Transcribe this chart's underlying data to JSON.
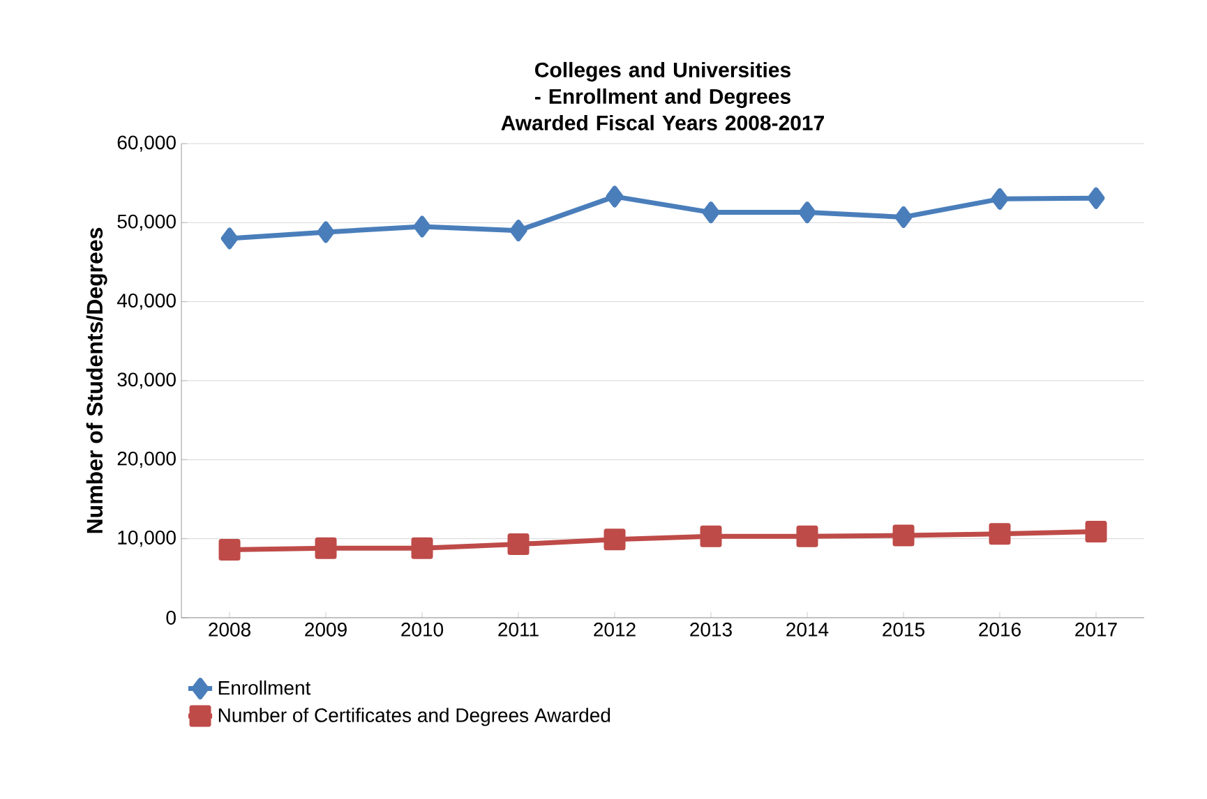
{
  "chart_data": {
    "type": "line",
    "title": "Colleges and Universities - Enrollment and Degrees Awarded Fiscal Years 2008-2017",
    "ylabel": "Number of Students/Degrees",
    "categories": [
      "2008",
      "2009",
      "2010",
      "2011",
      "2012",
      "2013",
      "2014",
      "2015",
      "2016",
      "2017"
    ],
    "series": [
      {
        "name": "Enrollment",
        "color": "#4a7ebb",
        "marker": "diamond",
        "values": [
          48000,
          48800,
          49500,
          49000,
          53300,
          51300,
          51300,
          50700,
          53000,
          53100
        ]
      },
      {
        "name": "Number of Certificates and Degrees Awarded",
        "color": "#be4b48",
        "marker": "square",
        "values": [
          8600,
          8800,
          8800,
          9300,
          9900,
          10300,
          10300,
          10400,
          10600,
          10900
        ]
      }
    ],
    "ylim": [
      0,
      60000
    ],
    "yticks": [
      {
        "value": 0,
        "label": "0"
      },
      {
        "value": 10000,
        "label": "10,000"
      },
      {
        "value": 20000,
        "label": "20,000"
      },
      {
        "value": 30000,
        "label": "30,000"
      },
      {
        "value": 40000,
        "label": "40,000"
      },
      {
        "value": 50000,
        "label": "50,000"
      },
      {
        "value": 60000,
        "label": "60,000"
      }
    ],
    "grid": "y",
    "legend": "bottom",
    "line_style": "solid"
  }
}
